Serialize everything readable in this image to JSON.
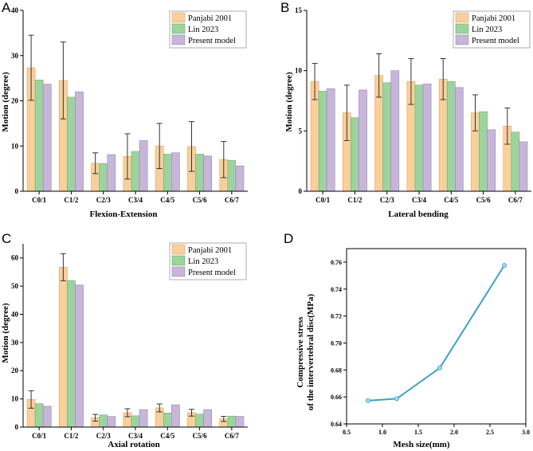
{
  "colors": {
    "panjabi": "#fbcf9b",
    "lin": "#9dd39c",
    "present": "#c7b5da",
    "panjabi_edge": "#d9a46a",
    "lin_edge": "#6fae6e",
    "present_edge": "#9a88b4",
    "line": "#3aa2c7",
    "marker": "#a8d8ea"
  },
  "chart_data": [
    {
      "panel": "A",
      "type": "bar",
      "xlabel": "Flexion-Extension",
      "ylabel": "Motion (degree)",
      "ylim": [
        0,
        40
      ],
      "yticks": [
        "0",
        "10",
        "20",
        "30",
        "40"
      ],
      "categories": [
        "C0/1",
        "C1/2",
        "C2/3",
        "C3/4",
        "C4/5",
        "C5/6",
        "C6/7"
      ],
      "legend": [
        "Panjabi 2001",
        "Lin 2023",
        "Present model"
      ],
      "series": [
        {
          "name": "Panjabi 2001",
          "values": [
            27.3,
            24.5,
            6.2,
            7.7,
            10.0,
            9.9,
            7.0
          ],
          "errors": [
            7.2,
            8.5,
            2.3,
            5.0,
            5.0,
            5.5,
            4.0
          ]
        },
        {
          "name": "Lin 2023",
          "values": [
            24.6,
            20.8,
            6.1,
            8.8,
            8.2,
            8.2,
            6.8
          ]
        },
        {
          "name": "Present model",
          "values": [
            23.7,
            22.0,
            8.1,
            11.2,
            8.5,
            7.8,
            5.6
          ]
        }
      ]
    },
    {
      "panel": "B",
      "type": "bar",
      "xlabel": "Lateral bending",
      "ylabel": "Motion (degree)",
      "ylim": [
        0,
        15
      ],
      "yticks": [
        "0",
        "5",
        "10",
        "15"
      ],
      "categories": [
        "C0/1",
        "C1/2",
        "C2/3",
        "C3/4",
        "C4/5",
        "C5/6",
        "C6/7"
      ],
      "legend": [
        "Panjabi 2001",
        "Lin 2023",
        "Present model"
      ],
      "series": [
        {
          "name": "Panjabi 2001",
          "values": [
            9.1,
            6.5,
            9.6,
            9.1,
            9.3,
            6.5,
            5.4
          ],
          "errors": [
            1.5,
            2.3,
            1.8,
            1.9,
            1.7,
            1.5,
            1.5
          ]
        },
        {
          "name": "Lin 2023",
          "values": [
            8.3,
            6.1,
            9.0,
            8.8,
            9.1,
            6.6,
            4.9
          ]
        },
        {
          "name": "Present model",
          "values": [
            8.5,
            8.4,
            10.0,
            8.9,
            8.6,
            5.1,
            4.1
          ]
        }
      ]
    },
    {
      "panel": "C",
      "type": "bar",
      "xlabel": "Axial rotation",
      "ylabel": "Motion (degree)",
      "ylim": [
        0,
        65
      ],
      "yticks": [
        "0",
        "10",
        "20",
        "30",
        "40",
        "50",
        "60"
      ],
      "categories": [
        "C0/1",
        "C1/2",
        "C2/3",
        "C3/4",
        "C4/5",
        "C5/6",
        "C6/7"
      ],
      "legend": [
        "Panjabi 2001",
        "Lin 2023",
        "Present model"
      ],
      "series": [
        {
          "name": "Panjabi 2001",
          "values": [
            9.8,
            56.7,
            3.3,
            5.1,
            6.8,
            5.1,
            2.9
          ],
          "errors": [
            3.1,
            4.8,
            1.2,
            1.4,
            1.4,
            1.2,
            0.9
          ]
        },
        {
          "name": "Lin 2023",
          "values": [
            8.3,
            52.0,
            4.3,
            4.0,
            5.0,
            4.6,
            3.9
          ]
        },
        {
          "name": "Present model",
          "values": [
            7.4,
            50.4,
            3.8,
            6.2,
            7.9,
            6.2,
            3.8
          ]
        }
      ]
    },
    {
      "panel": "D",
      "type": "line",
      "xlabel": "Mesh size(mm)",
      "ylabel_line1": "Compressive stress",
      "ylabel_line2": "of the intervertebral disc(MPa)",
      "xlim": [
        0.5,
        3.0
      ],
      "ylim": [
        0.64,
        0.77
      ],
      "xticks": [
        "0.5",
        "1.0",
        "1.5",
        "2.0",
        "2.5",
        "3.0"
      ],
      "yticks": [
        "0.64",
        "0.66",
        "0.68",
        "0.70",
        "0.72",
        "0.74",
        "0.76"
      ],
      "x": [
        0.8,
        1.2,
        1.8,
        2.7
      ],
      "y": [
        0.6573,
        0.6587,
        0.6815,
        0.7575
      ]
    }
  ]
}
